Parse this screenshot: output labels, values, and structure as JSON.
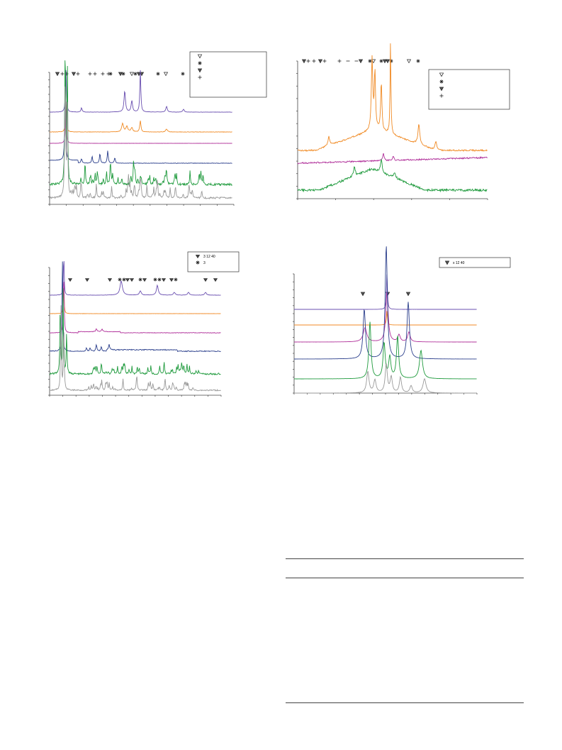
{
  "colors": {
    "purple": "#6a4fb0",
    "orange": "#f08a24",
    "magenta": "#b0309a",
    "navy": "#2b3f8c",
    "green": "#1e9a3c",
    "gray": "#9a9a9a",
    "axis": "#444444"
  },
  "charts": [
    {
      "id": "top-left",
      "type": "line",
      "x_ticks": 11,
      "y_ticks": 18,
      "marker_row": [
        "triangle-down-filled",
        "plus",
        "plus",
        "triangle-down-filled",
        "plus",
        "plus",
        "plus",
        "plus",
        "plus",
        "asterisk",
        "triangle-down-filled",
        "asterisk",
        "triangle-down",
        "asterisk",
        "triangle-down-filled",
        "triangle-down-filled",
        "asterisk",
        "triangle-down",
        "asterisk"
      ],
      "legend": {
        "entries": [
          {
            "icon": "triangle-down",
            "label": ""
          },
          {
            "icon": "asterisk",
            "label": ""
          },
          {
            "icon": "triangle-down-filled",
            "label": ""
          },
          {
            "icon": "plus",
            "label": ""
          }
        ]
      },
      "series_colors": [
        "purple",
        "orange",
        "magenta",
        "navy",
        "green",
        "gray"
      ]
    },
    {
      "id": "top-right",
      "type": "line",
      "x_ticks": 5,
      "y_ticks": 11,
      "marker_row": [
        "triangle-down-filled",
        "plus",
        "plus",
        "triangle-down-filled",
        "plus",
        "plus",
        "minus",
        "minus",
        "triangle-down-filled",
        "asterisk",
        "triangle-down",
        "asterisk",
        "triangle-down-filled",
        "triangle-down-filled",
        "asterisk",
        "triangle-down",
        "asterisk"
      ],
      "legend": {
        "entries": [
          {
            "icon": "triangle-down",
            "label": ""
          },
          {
            "icon": "asterisk",
            "label": ""
          },
          {
            "icon": "triangle-down-filled",
            "label": ""
          },
          {
            "icon": "plus",
            "label": ""
          }
        ]
      },
      "series_colors": [
        "orange",
        "magenta",
        "green"
      ]
    },
    {
      "id": "bottom-left",
      "type": "line",
      "x_ticks": 13,
      "y_ticks": 16,
      "marker_row": [
        "diamond-filled",
        "diamond-filled",
        "diamond-filled",
        "asterisk",
        "asterisk",
        "diamond-filled",
        "diamond-filled",
        "asterisk",
        "diamond-filled",
        "asterisk",
        "asterisk",
        "diamond-filled",
        "diamond-filled",
        "asterisk",
        "diamond-filled",
        "diamond-filled"
      ],
      "legend": {
        "entries": [
          {
            "icon": "diamond-filled",
            "label": "3   12   40"
          },
          {
            "icon": "asterisk",
            "label": "3"
          }
        ]
      },
      "series_colors": [
        "purple",
        "orange",
        "magenta",
        "navy",
        "green",
        "gray"
      ]
    },
    {
      "id": "bottom-right",
      "type": "line",
      "x_ticks": 14,
      "y_ticks": 15,
      "marker_row": [
        "triangle-down-filled",
        "triangle-down-filled",
        "triangle-down-filled"
      ],
      "legend": {
        "entries": [
          {
            "icon": "triangle-down-filled",
            "label": "x       12    40"
          }
        ]
      },
      "series_colors": [
        "purple",
        "orange",
        "magenta",
        "navy",
        "green",
        "gray"
      ]
    }
  ],
  "table": {
    "rules": 3
  }
}
